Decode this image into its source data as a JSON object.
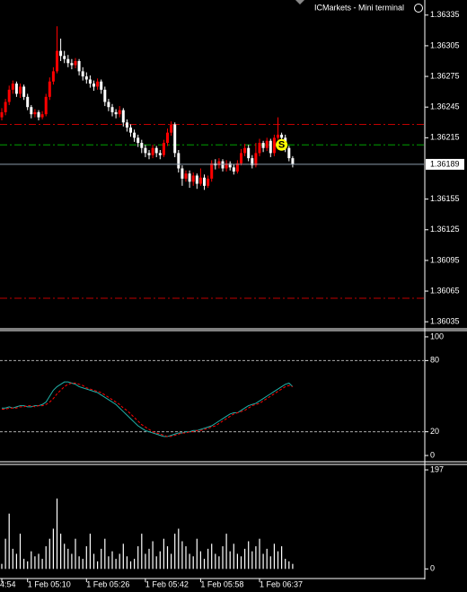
{
  "header": "ICMarkets - Mini terminal",
  "chart_data": [
    {
      "type": "candlestick",
      "open": [
        1.36235,
        1.3624,
        1.3625,
        1.36262,
        1.36268,
        1.36258,
        1.36265,
        1.36255,
        1.36245,
        1.36238,
        1.3624,
        1.36235,
        1.36238,
        1.36255,
        1.3627,
        1.3628,
        1.363,
        1.36295,
        1.36292,
        1.36288,
        1.36286,
        1.3629,
        1.3628,
        1.36275,
        1.36272,
        1.36268,
        1.36265,
        1.3627,
        1.36262,
        1.3625,
        1.36245,
        1.3624,
        1.36238,
        1.36242,
        1.3623,
        1.36225,
        1.3622,
        1.36215,
        1.3621,
        1.36205,
        1.362,
        1.36198,
        1.36205,
        1.362,
        1.36198,
        1.3621,
        1.3622,
        1.36228,
        1.362,
        1.36185,
        1.36175,
        1.3618,
        1.36172,
        1.36178,
        1.3617,
        1.36176,
        1.36168,
        1.36175,
        1.3619,
        1.36188,
        1.36192,
        1.36185,
        1.3619,
        1.36186,
        1.36182,
        1.3619,
        1.362,
        1.36205,
        1.36195,
        1.36188,
        1.362,
        1.3621,
        1.36205,
        1.36212,
        1.362,
        1.36215,
        1.36218,
        1.36215,
        1.36205,
        1.36195
      ],
      "high": [
        1.36244,
        1.36253,
        1.36266,
        1.36271,
        1.3627,
        1.36268,
        1.36267,
        1.36258,
        1.36247,
        1.36243,
        1.36242,
        1.36241,
        1.36258,
        1.36274,
        1.36284,
        1.36324,
        1.36312,
        1.363,
        1.36296,
        1.36292,
        1.36293,
        1.36292,
        1.36284,
        1.36279,
        1.36276,
        1.36271,
        1.36273,
        1.36272,
        1.36265,
        1.36253,
        1.36248,
        1.36243,
        1.36246,
        1.36244,
        1.36233,
        1.36228,
        1.36223,
        1.36218,
        1.36213,
        1.36208,
        1.36203,
        1.36208,
        1.36207,
        1.36203,
        1.36213,
        1.36224,
        1.36231,
        1.3623,
        1.36203,
        1.36188,
        1.36183,
        1.36183,
        1.36181,
        1.3618,
        1.36185,
        1.36179,
        1.36178,
        1.36193,
        1.36194,
        1.36195,
        1.36194,
        1.36193,
        1.36192,
        1.36189,
        1.36193,
        1.36204,
        1.36209,
        1.36208,
        1.36198,
        1.3621,
        1.36214,
        1.36212,
        1.36215,
        1.36214,
        1.36218,
        1.36235,
        1.3622,
        1.36218,
        1.36207,
        1.36197
      ],
      "low": [
        1.36232,
        1.36237,
        1.36247,
        1.36258,
        1.36255,
        1.36254,
        1.36252,
        1.36242,
        1.36234,
        1.36235,
        1.36232,
        1.36233,
        1.36236,
        1.36252,
        1.36267,
        1.36278,
        1.3629,
        1.36288,
        1.36284,
        1.36282,
        1.36283,
        1.36276,
        1.36271,
        1.36268,
        1.36264,
        1.36261,
        1.36262,
        1.36258,
        1.36246,
        1.36241,
        1.36236,
        1.36234,
        1.36235,
        1.36226,
        1.36221,
        1.36216,
        1.36211,
        1.36206,
        1.362,
        1.36196,
        1.36194,
        1.36195,
        1.36196,
        1.36194,
        1.36196,
        1.36207,
        1.36217,
        1.36196,
        1.36181,
        1.36168,
        1.36172,
        1.36166,
        1.36168,
        1.36165,
        1.36168,
        1.36164,
        1.36166,
        1.36172,
        1.36184,
        1.36185,
        1.36182,
        1.36182,
        1.36183,
        1.36179,
        1.3618,
        1.36188,
        1.36197,
        1.36192,
        1.36185,
        1.36186,
        1.36197,
        1.36201,
        1.36202,
        1.36196,
        1.36197,
        1.36213,
        1.36211,
        1.36201,
        1.36192,
        1.36186
      ],
      "close": [
        1.3624,
        1.3625,
        1.36262,
        1.36268,
        1.36258,
        1.36265,
        1.36255,
        1.36245,
        1.36238,
        1.3624,
        1.36235,
        1.36238,
        1.36255,
        1.3627,
        1.3628,
        1.363,
        1.36295,
        1.36292,
        1.36288,
        1.36286,
        1.3629,
        1.3628,
        1.36275,
        1.36272,
        1.36268,
        1.36265,
        1.3627,
        1.36262,
        1.3625,
        1.36245,
        1.3624,
        1.36238,
        1.36242,
        1.3623,
        1.36225,
        1.3622,
        1.36215,
        1.3621,
        1.36205,
        1.362,
        1.36198,
        1.36205,
        1.362,
        1.36198,
        1.3621,
        1.3622,
        1.36228,
        1.362,
        1.36185,
        1.36175,
        1.3618,
        1.36172,
        1.36178,
        1.3617,
        1.36176,
        1.36168,
        1.36175,
        1.3619,
        1.36188,
        1.36192,
        1.36185,
        1.3619,
        1.36186,
        1.36182,
        1.3619,
        1.362,
        1.36205,
        1.36195,
        1.36188,
        1.362,
        1.3621,
        1.36205,
        1.36212,
        1.362,
        1.36215,
        1.36218,
        1.36215,
        1.36205,
        1.36195,
        1.36189
      ],
      "up_color": "#ff0000",
      "down_color": "#ffffff",
      "ylim": [
        1.36029,
        1.36348
      ],
      "yticks": [
        1.36335,
        1.36305,
        1.36275,
        1.36245,
        1.36215,
        1.36155,
        1.36125,
        1.36095,
        1.36065,
        1.36035
      ],
      "hlines": [
        {
          "value": 1.36228,
          "color": "#c00000"
        },
        {
          "value": 1.36208,
          "color": "#00a000"
        },
        {
          "value": 1.36058,
          "color": "#c00000"
        }
      ],
      "last_price": 1.36189,
      "annotation": "S"
    },
    {
      "type": "line",
      "series": [
        {
          "color": "#20b2aa",
          "values": [
            40,
            40,
            41,
            40,
            41,
            42,
            42,
            41,
            41,
            42,
            42,
            43,
            45,
            50,
            55,
            58,
            60,
            62,
            62,
            61,
            60,
            58,
            57,
            56,
            55,
            54,
            53,
            51,
            49,
            47,
            45,
            43,
            40,
            37,
            34,
            31,
            28,
            25,
            23,
            21,
            20,
            19,
            18,
            17,
            16,
            16,
            17,
            18,
            19,
            19,
            20,
            20,
            21,
            21,
            22,
            23,
            24,
            25,
            27,
            29,
            31,
            33,
            35,
            36,
            36,
            38,
            40,
            42,
            43,
            44,
            46,
            48,
            50,
            52,
            54,
            56,
            58,
            60,
            61,
            58
          ]
        },
        {
          "color": "#ff0000",
          "dashed": true,
          "values": [
            39,
            39,
            40,
            40,
            40,
            41,
            41,
            42,
            42,
            41,
            42,
            42,
            43,
            45,
            48,
            52,
            55,
            58,
            60,
            61,
            61,
            60,
            59,
            57,
            56,
            55,
            54,
            53,
            51,
            49,
            47,
            45,
            43,
            40,
            38,
            35,
            32,
            29,
            26,
            24,
            22,
            20,
            19,
            18,
            17,
            16,
            16,
            17,
            18,
            19,
            19,
            20,
            20,
            21,
            21,
            22,
            23,
            24,
            25,
            27,
            29,
            31,
            33,
            35,
            36,
            37,
            38,
            40,
            42,
            43,
            44,
            46,
            48,
            50,
            52,
            54,
            56,
            58,
            59,
            58
          ]
        }
      ],
      "ylim": [
        -4.5,
        104.5
      ],
      "yticks": [
        100,
        80,
        20,
        0
      ],
      "levels": [
        80,
        20
      ]
    },
    {
      "type": "bar",
      "categories": [
        "4:54",
        null,
        null,
        null,
        null,
        null,
        null,
        "1 Feb 05:10",
        null,
        null,
        null,
        null,
        null,
        null,
        null,
        null,
        null,
        null,
        null,
        null,
        null,
        null,
        null,
        "1 Feb 05:26",
        null,
        null,
        null,
        null,
        null,
        null,
        null,
        null,
        null,
        null,
        null,
        null,
        null,
        null,
        null,
        "1 Feb 05:42",
        null,
        null,
        null,
        null,
        null,
        null,
        null,
        null,
        null,
        null,
        null,
        null,
        null,
        null,
        "1 Feb 05:58",
        null,
        null,
        null,
        null,
        null,
        null,
        null,
        null,
        null,
        null,
        null,
        null,
        null,
        null,
        null,
        "1 Feb 06:37",
        null,
        null,
        null,
        null,
        null,
        null,
        null,
        null,
        null
      ],
      "values": [
        10,
        60,
        110,
        40,
        30,
        70,
        20,
        15,
        35,
        25,
        30,
        20,
        45,
        60,
        80,
        140,
        70,
        50,
        40,
        30,
        60,
        25,
        20,
        45,
        70,
        30,
        15,
        40,
        60,
        25,
        35,
        20,
        30,
        50,
        25,
        15,
        20,
        45,
        70,
        30,
        40,
        55,
        25,
        35,
        60,
        45,
        30,
        70,
        80,
        55,
        45,
        30,
        25,
        60,
        35,
        20,
        40,
        50,
        30,
        25,
        45,
        70,
        35,
        50,
        30,
        25,
        40,
        55,
        35,
        45,
        60,
        30,
        40,
        25,
        50,
        35,
        45,
        20,
        15,
        10
      ],
      "color": "#ffffff",
      "ylim": [
        -12,
        206
      ],
      "yticks": [
        197,
        0
      ]
    }
  ]
}
